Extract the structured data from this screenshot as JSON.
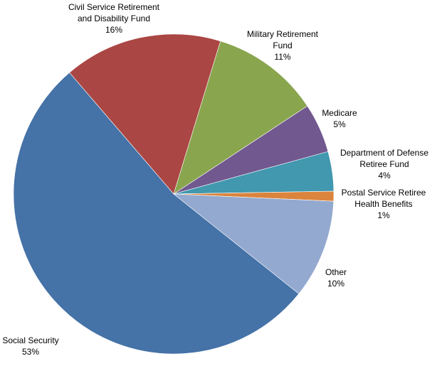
{
  "chart_data": {
    "type": "pie",
    "title": "",
    "slices": [
      {
        "name": "Civil Service Retirement and Disability Fund",
        "label_lines": [
          "Civil Service Retirement",
          "and Disability Fund"
        ],
        "value": 16,
        "pct_label": "16%",
        "color": "#AA4643"
      },
      {
        "name": "Military Retirement Fund",
        "label_lines": [
          "Military Retirement",
          "Fund"
        ],
        "value": 11,
        "pct_label": "11%",
        "color": "#89A54E"
      },
      {
        "name": "Medicare",
        "label_lines": [
          "Medicare"
        ],
        "value": 5,
        "pct_label": "5%",
        "color": "#71588F"
      },
      {
        "name": "Department of Defense Retiree Fund",
        "label_lines": [
          "Department of Defense",
          "Retiree Fund"
        ],
        "value": 4,
        "pct_label": "4%",
        "color": "#4198AF"
      },
      {
        "name": "Postal Service Retiree Health Benefits",
        "label_lines": [
          "Postal Service Retiree",
          "Health Benefits"
        ],
        "value": 1,
        "pct_label": "1%",
        "color": "#DB843D"
      },
      {
        "name": "Other",
        "label_lines": [
          "Other"
        ],
        "value": 10,
        "pct_label": "10%",
        "color": "#93A9CF"
      },
      {
        "name": "Social Security",
        "label_lines": [
          "Social Security"
        ],
        "value": 53,
        "pct_label": "53%",
        "color": "#4572A7"
      }
    ],
    "unit": "%",
    "legend": "none (direct labels)"
  }
}
